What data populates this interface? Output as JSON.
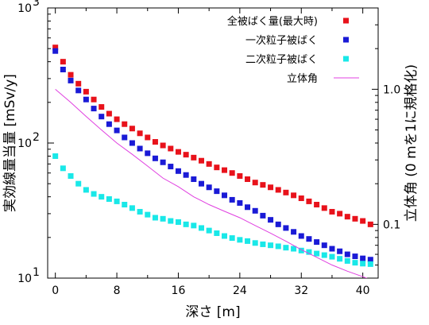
{
  "chart_data": {
    "type": "scatter",
    "xlabel": "深さ [m]",
    "ylabel": "実効線量当量 [mSv/y]",
    "y2label": "立体角 (0 mを1に規格化)",
    "xlim": [
      -1,
      42
    ],
    "ylim": [
      10,
      1000
    ],
    "y_scale": "log",
    "y2lim": [
      0.04,
      4.0
    ],
    "y2_scale": "log",
    "x_ticks": [
      0,
      8,
      16,
      24,
      32,
      40
    ],
    "x_tick_labels": [
      "0",
      "8",
      "16",
      "24",
      "32",
      "40"
    ],
    "y_ticks": [
      10,
      100,
      1000
    ],
    "y_tick_labels": [
      "10",
      "10",
      "10"
    ],
    "y_tick_exponents": [
      "1",
      "2",
      "3"
    ],
    "y2_ticks": [
      0.1,
      1.0
    ],
    "y2_tick_labels": [
      "0.1",
      "1.0"
    ],
    "legend_position": "top-right",
    "grid": false,
    "series": [
      {
        "name": "全被ばく量(最大時)",
        "color": "#e8121b",
        "marker": "square",
        "x": [
          0,
          1,
          2,
          3,
          4,
          5,
          6,
          7,
          8,
          9,
          10,
          11,
          12,
          13,
          14,
          15,
          16,
          17,
          18,
          19,
          20,
          21,
          22,
          23,
          24,
          25,
          26,
          27,
          28,
          29,
          30,
          31,
          32,
          33,
          34,
          35,
          36,
          37,
          38,
          39,
          40,
          41
        ],
        "values": [
          510,
          400,
          320,
          275,
          240,
          210,
          185,
          165,
          150,
          138,
          128,
          118,
          110,
          102,
          96,
          91,
          86,
          82,
          78,
          74,
          70,
          66,
          63,
          60,
          57,
          54,
          51,
          49,
          47,
          45,
          43,
          41,
          39,
          37,
          35,
          33,
          31,
          30,
          28.5,
          27.5,
          26.5,
          25
        ]
      },
      {
        "name": "一次粒子被ばく",
        "color": "#1a1ad6",
        "marker": "square",
        "x": [
          0,
          1,
          2,
          3,
          4,
          5,
          6,
          7,
          8,
          9,
          10,
          11,
          12,
          13,
          14,
          15,
          16,
          17,
          18,
          19,
          20,
          21,
          22,
          23,
          24,
          25,
          26,
          27,
          28,
          29,
          30,
          31,
          32,
          33,
          34,
          35,
          36,
          37,
          38,
          39,
          40,
          41
        ],
        "values": [
          480,
          350,
          290,
          245,
          210,
          180,
          157,
          138,
          124,
          110,
          100,
          91,
          84,
          77,
          72,
          67,
          62,
          58,
          54,
          50,
          47,
          44,
          41,
          38,
          36,
          33.5,
          31.5,
          29,
          27,
          25,
          23.5,
          22,
          20.5,
          19.5,
          18.5,
          17.5,
          16.5,
          15.8,
          15,
          14.5,
          14,
          13.7
        ]
      },
      {
        "name": "二次粒子被ばく",
        "color": "#19e8e8",
        "marker": "square",
        "x": [
          0,
          1,
          2,
          3,
          4,
          5,
          6,
          7,
          8,
          9,
          10,
          11,
          12,
          13,
          14,
          15,
          16,
          17,
          18,
          19,
          20,
          21,
          22,
          23,
          24,
          25,
          26,
          27,
          28,
          29,
          30,
          31,
          32,
          33,
          34,
          35,
          36,
          37,
          38,
          39,
          40,
          41
        ],
        "values": [
          80,
          65,
          57,
          50,
          45,
          42,
          40,
          38.5,
          37,
          35,
          33,
          31,
          29.5,
          28,
          27.5,
          26.5,
          26,
          25,
          24.5,
          23.5,
          22.5,
          21.5,
          20.5,
          19.8,
          19.2,
          18.8,
          18.2,
          17.8,
          17.5,
          17.2,
          16.8,
          16.5,
          16,
          15.6,
          15.2,
          14.8,
          14.4,
          13.9,
          13.4,
          13,
          12.8,
          12.7
        ]
      },
      {
        "name": "立体角",
        "color": "#e040e0",
        "marker": "line",
        "axis": "y2",
        "x": [
          0,
          2,
          4,
          6,
          8,
          10,
          12,
          14,
          16,
          18,
          20,
          22,
          24,
          26,
          28,
          30,
          32,
          34,
          36,
          38,
          40,
          42
        ],
        "values": [
          1.0,
          0.8,
          0.63,
          0.5,
          0.4,
          0.33,
          0.27,
          0.22,
          0.19,
          0.16,
          0.14,
          0.125,
          0.112,
          0.098,
          0.086,
          0.075,
          0.065,
          0.057,
          0.05,
          0.045,
          0.041,
          0.037
        ]
      }
    ]
  }
}
